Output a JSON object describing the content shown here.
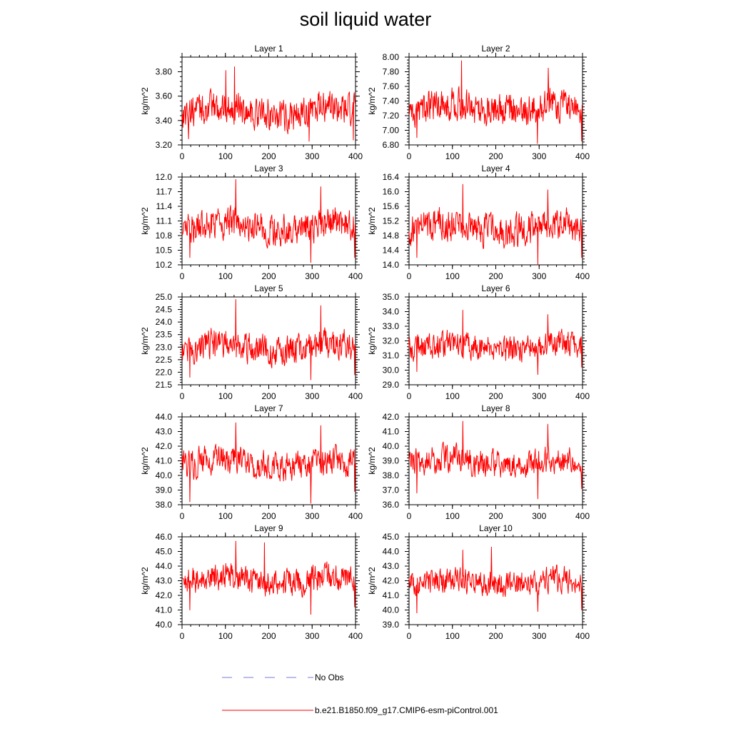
{
  "title": "soil liquid water",
  "colors": {
    "model": "#ff0000",
    "obs": "#7b7bd6",
    "axis": "#000000"
  },
  "legend": {
    "obs_label": "No Obs",
    "model_label": "b.e21.B1850.f09_g17.CMIP6-esm-piControl.001"
  },
  "chart_data": [
    {
      "type": "line",
      "title": "Layer 1",
      "ylabel": "kg/m^2",
      "xlim": [
        0,
        400
      ],
      "xticks": [
        0,
        100,
        200,
        300,
        400
      ],
      "ylim": [
        3.2,
        3.92
      ],
      "yticks": [
        "3.20",
        "3.40",
        "3.60",
        "3.80"
      ],
      "ytick_values": [
        3.2,
        3.4,
        3.6,
        3.8
      ],
      "yminor_step": 0.04,
      "mean": 3.47,
      "amp": 0.12,
      "events": [
        [
          101,
          3.81
        ],
        [
          121,
          3.84
        ],
        [
          15,
          3.25
        ],
        [
          293,
          3.23
        ],
        [
          395,
          3.24
        ]
      ]
    },
    {
      "type": "line",
      "title": "Layer 2",
      "ylabel": "kg/m^2",
      "xlim": [
        0,
        400
      ],
      "xticks": [
        0,
        100,
        200,
        300,
        400
      ],
      "ylim": [
        6.8,
        8.0
      ],
      "yticks": [
        "6.80",
        "7.00",
        "7.20",
        "7.40",
        "7.60",
        "7.80",
        "8.00"
      ],
      "ytick_values": [
        6.8,
        7.0,
        7.2,
        7.4,
        7.6,
        7.8,
        8.0
      ],
      "yminor_step": 0.04,
      "mean": 7.3,
      "amp": 0.2,
      "events": [
        [
          121,
          7.95
        ],
        [
          321,
          7.85
        ],
        [
          18,
          6.9
        ],
        [
          296,
          6.82
        ],
        [
          398,
          6.85
        ]
      ]
    },
    {
      "type": "line",
      "title": "Layer 3",
      "ylabel": "kg/m^2",
      "xlim": [
        0,
        400
      ],
      "xticks": [
        0,
        100,
        200,
        300,
        400
      ],
      "ylim": [
        10.2,
        12.0
      ],
      "yticks": [
        "10.2",
        "10.5",
        "10.8",
        "11.1",
        "11.4",
        "11.7",
        "12.0"
      ],
      "ytick_values": [
        10.2,
        10.5,
        10.8,
        11.1,
        11.4,
        11.7,
        12.0
      ],
      "yminor_step": 0.06,
      "mean": 10.98,
      "amp": 0.3,
      "events": [
        [
          124,
          11.95
        ],
        [
          320,
          11.8
        ],
        [
          18,
          10.35
        ],
        [
          297,
          10.25
        ],
        [
          398,
          10.35
        ]
      ]
    },
    {
      "type": "line",
      "title": "Layer 4",
      "ylabel": "kg/m^2",
      "xlim": [
        0,
        400
      ],
      "xticks": [
        0,
        100,
        200,
        300,
        400
      ],
      "ylim": [
        14.0,
        16.4
      ],
      "yticks": [
        "14.0",
        "14.4",
        "14.8",
        "15.2",
        "15.6",
        "16.0",
        "16.4"
      ],
      "ytick_values": [
        14.0,
        14.4,
        14.8,
        15.2,
        15.6,
        16.0,
        16.4
      ],
      "yminor_step": 0.08,
      "mean": 15.0,
      "amp": 0.4,
      "events": [
        [
          124,
          16.2
        ],
        [
          320,
          16.05
        ],
        [
          18,
          14.2
        ],
        [
          297,
          14.0
        ],
        [
          398,
          14.2
        ]
      ]
    },
    {
      "type": "line",
      "title": "Layer 5",
      "ylabel": "kg/m^2",
      "xlim": [
        0,
        400
      ],
      "xticks": [
        0,
        100,
        200,
        300,
        400
      ],
      "ylim": [
        21.5,
        25.0
      ],
      "yticks": [
        "21.5",
        "22.0",
        "22.5",
        "23.0",
        "23.5",
        "24.0",
        "24.5",
        "25.0"
      ],
      "ytick_values": [
        21.5,
        22.0,
        22.5,
        23.0,
        23.5,
        24.0,
        24.5,
        25.0
      ],
      "yminor_step": 0.1,
      "mean": 23.0,
      "amp": 0.55,
      "events": [
        [
          124,
          24.9
        ],
        [
          320,
          24.65
        ],
        [
          18,
          21.8
        ],
        [
          297,
          21.7
        ],
        [
          398,
          21.9
        ]
      ]
    },
    {
      "type": "line",
      "title": "Layer 6",
      "ylabel": "kg/m^2",
      "xlim": [
        0,
        400
      ],
      "xticks": [
        0,
        100,
        200,
        300,
        400
      ],
      "ylim": [
        29.0,
        35.0
      ],
      "yticks": [
        "29.0",
        "30.0",
        "31.0",
        "32.0",
        "33.0",
        "34.0",
        "35.0"
      ],
      "ytick_values": [
        29.0,
        30.0,
        31.0,
        32.0,
        33.0,
        34.0,
        35.0
      ],
      "yminor_step": 0.2,
      "mean": 31.6,
      "amp": 0.8,
      "events": [
        [
          124,
          34.1
        ],
        [
          320,
          33.8
        ],
        [
          18,
          29.9
        ],
        [
          297,
          29.7
        ],
        [
          398,
          30.2
        ]
      ]
    },
    {
      "type": "line",
      "title": "Layer 7",
      "ylabel": "kg/m^2",
      "xlim": [
        0,
        400
      ],
      "xticks": [
        0,
        100,
        200,
        300,
        400
      ],
      "ylim": [
        38.0,
        44.0
      ],
      "yticks": [
        "38.0",
        "39.0",
        "40.0",
        "41.0",
        "42.0",
        "43.0",
        "44.0"
      ],
      "ytick_values": [
        38.0,
        39.0,
        40.0,
        41.0,
        42.0,
        43.0,
        44.0
      ],
      "yminor_step": 0.2,
      "mean": 40.8,
      "amp": 0.9,
      "events": [
        [
          124,
          43.6
        ],
        [
          320,
          43.4
        ],
        [
          18,
          38.2
        ],
        [
          297,
          38.1
        ],
        [
          398,
          38.9
        ]
      ]
    },
    {
      "type": "line",
      "title": "Layer 8",
      "ylabel": "kg/m^2",
      "xlim": [
        0,
        400
      ],
      "xticks": [
        0,
        100,
        200,
        300,
        400
      ],
      "ylim": [
        36.0,
        42.0
      ],
      "yticks": [
        "36.0",
        "37.0",
        "38.0",
        "39.0",
        "40.0",
        "41.0",
        "42.0"
      ],
      "ytick_values": [
        36.0,
        37.0,
        38.0,
        39.0,
        40.0,
        41.0,
        42.0
      ],
      "yminor_step": 0.2,
      "mean": 38.9,
      "amp": 0.85,
      "events": [
        [
          124,
          41.7
        ],
        [
          320,
          41.5
        ],
        [
          18,
          36.8
        ],
        [
          297,
          36.4
        ],
        [
          398,
          37.1
        ]
      ]
    },
    {
      "type": "line",
      "title": "Layer 9",
      "ylabel": "kg/m^2",
      "xlim": [
        0,
        400
      ],
      "xticks": [
        0,
        100,
        200,
        300,
        400
      ],
      "ylim": [
        40.0,
        46.0
      ],
      "yticks": [
        "40.0",
        "41.0",
        "42.0",
        "43.0",
        "44.0",
        "45.0",
        "46.0"
      ],
      "ytick_values": [
        40.0,
        41.0,
        42.0,
        43.0,
        44.0,
        45.0,
        46.0
      ],
      "yminor_step": 0.2,
      "mean": 43.0,
      "amp": 0.85,
      "events": [
        [
          124,
          45.7
        ],
        [
          190,
          45.6
        ],
        [
          18,
          41.0
        ],
        [
          297,
          40.7
        ],
        [
          398,
          41.2
        ]
      ]
    },
    {
      "type": "line",
      "title": "Layer 10",
      "ylabel": "kg/m^2",
      "xlim": [
        0,
        400
      ],
      "xticks": [
        0,
        100,
        200,
        300,
        400
      ],
      "ylim": [
        39.0,
        45.0
      ],
      "yticks": [
        "39.0",
        "40.0",
        "41.0",
        "42.0",
        "43.0",
        "44.0",
        "45.0"
      ],
      "ytick_values": [
        39.0,
        40.0,
        41.0,
        42.0,
        43.0,
        44.0,
        45.0
      ],
      "yminor_step": 0.2,
      "mean": 41.9,
      "amp": 0.8,
      "events": [
        [
          124,
          44.1
        ],
        [
          190,
          44.3
        ],
        [
          18,
          39.8
        ],
        [
          297,
          39.9
        ],
        [
          398,
          40.0
        ]
      ]
    }
  ]
}
